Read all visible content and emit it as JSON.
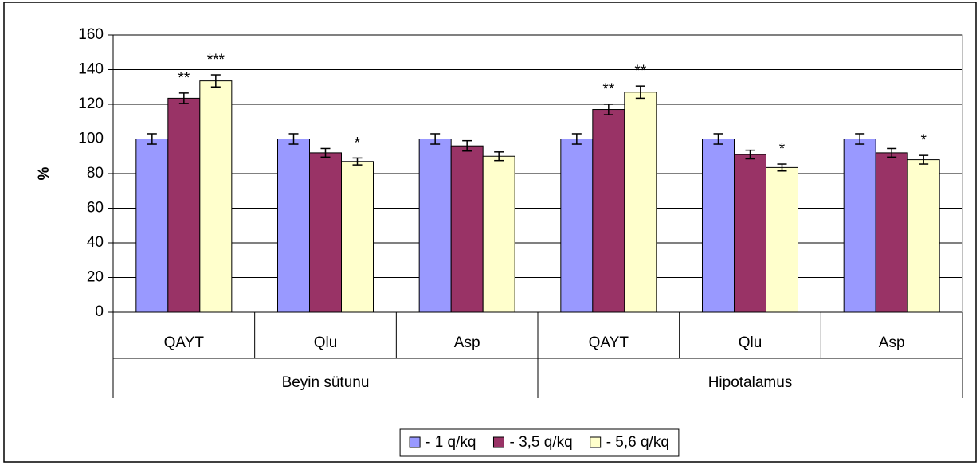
{
  "chart_data": {
    "type": "bar",
    "ylabel": "%",
    "categories": [
      "QAYT",
      "Qlu",
      "Asp",
      "QAYT",
      "Qlu",
      "Asp"
    ],
    "groups": [
      {
        "name": "Beyin sütunu",
        "size": 3
      },
      {
        "name": "Hipotalamus",
        "size": 3
      }
    ],
    "series": [
      {
        "name": "- 1 q/kq",
        "color": "#9999ff",
        "values": [
          100,
          100,
          100,
          100,
          100,
          100
        ],
        "errors": [
          3,
          3,
          3,
          3,
          3,
          3
        ],
        "significance": [
          null,
          null,
          null,
          null,
          null,
          null
        ]
      },
      {
        "name": "- 3,5 q/kq",
        "color": "#993366",
        "values": [
          123.5,
          92,
          96,
          117,
          91,
          92
        ],
        "errors": [
          3,
          2.5,
          3,
          3,
          2.5,
          2.5
        ],
        "significance": [
          "**",
          null,
          null,
          "**",
          null,
          null
        ]
      },
      {
        "name": "- 5,6 q/kq",
        "color": "#ffffcc",
        "values": [
          133.5,
          87,
          90,
          127,
          83.5,
          88
        ],
        "errors": [
          3.5,
          2,
          2.5,
          3.5,
          2,
          2.5
        ],
        "significance": [
          "***",
          "*",
          null,
          "**",
          "*",
          "*"
        ]
      }
    ],
    "ylim": [
      0,
      160
    ],
    "yticks": [
      0,
      20,
      40,
      60,
      80,
      100,
      120,
      140,
      160
    ],
    "grid": true,
    "legend": "bottom"
  }
}
